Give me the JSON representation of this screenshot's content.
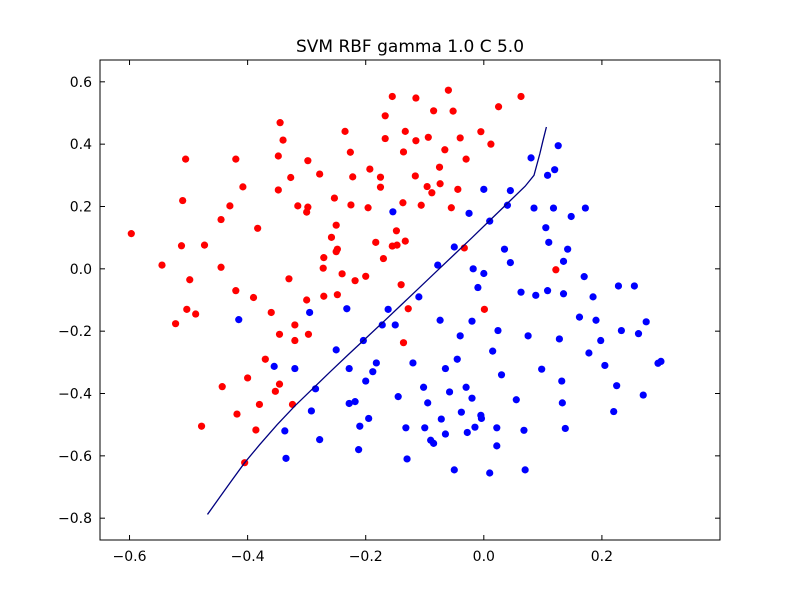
{
  "colors": {
    "class_a": "#ff0000",
    "class_b": "#0000ff",
    "boundary": "#000080",
    "axes": "#000000",
    "background": "#ffffff"
  },
  "chart_data": {
    "type": "scatter",
    "title": "SVM RBF gamma 1.0 C 5.0",
    "xlabel": "",
    "ylabel": "",
    "xlim": [
      -0.65,
      0.4
    ],
    "ylim": [
      -0.87,
      0.67
    ],
    "grid": false,
    "x_ticks": [
      -0.6,
      -0.4,
      -0.2,
      0.0,
      0.2
    ],
    "x_tick_labels": [
      "−0.6",
      "−0.4",
      "−0.2",
      "0.0",
      "0.2"
    ],
    "y_ticks": [
      0.6,
      0.4,
      0.2,
      0.0,
      -0.2,
      -0.4,
      -0.6,
      -0.8
    ],
    "y_tick_labels": [
      "0.6",
      "0.4",
      "0.2",
      "0.0",
      "−0.2",
      "−0.4",
      "−0.6",
      "−0.8"
    ],
    "series": [
      {
        "color": "#ff0000",
        "points": [
          [
            -0.597,
            0.113
          ],
          [
            -0.545,
            0.012
          ],
          [
            -0.522,
            -0.176
          ],
          [
            -0.512,
            0.074
          ],
          [
            -0.51,
            0.219
          ],
          [
            -0.505,
            0.352
          ],
          [
            -0.503,
            -0.13
          ],
          [
            -0.498,
            -0.035
          ],
          [
            -0.488,
            -0.145
          ],
          [
            -0.478,
            -0.505
          ],
          [
            -0.473,
            0.076
          ],
          [
            -0.445,
            0.158
          ],
          [
            -0.443,
            -0.378
          ],
          [
            -0.445,
            0.005
          ],
          [
            -0.43,
            0.202
          ],
          [
            -0.42,
            0.352
          ],
          [
            -0.42,
            -0.07
          ],
          [
            -0.418,
            -0.466
          ],
          [
            -0.408,
            0.263
          ],
          [
            -0.405,
            -0.622
          ],
          [
            -0.4,
            -0.35
          ],
          [
            -0.39,
            -0.092
          ],
          [
            -0.386,
            -0.517
          ],
          [
            -0.383,
            0.13
          ],
          [
            -0.38,
            -0.435
          ],
          [
            -0.37,
            -0.29
          ],
          [
            -0.36,
            -0.14
          ],
          [
            -0.353,
            -0.393
          ],
          [
            -0.348,
            0.362
          ],
          [
            -0.348,
            0.253
          ],
          [
            -0.346,
            -0.21
          ],
          [
            -0.346,
            -0.37
          ],
          [
            -0.345,
            0.469
          ],
          [
            -0.34,
            0.413
          ],
          [
            -0.33,
            -0.032
          ],
          [
            -0.327,
            0.293
          ],
          [
            -0.324,
            -0.435
          ],
          [
            -0.32,
            -0.18
          ],
          [
            -0.32,
            -0.23
          ],
          [
            -0.315,
            0.202
          ],
          [
            -0.3,
            0.182
          ],
          [
            -0.3,
            -0.1
          ],
          [
            -0.298,
            0.198
          ],
          [
            -0.298,
            0.347
          ],
          [
            -0.297,
            -0.21
          ],
          [
            -0.278,
            0.304
          ],
          [
            -0.272,
            0.002
          ],
          [
            -0.271,
            0.036
          ],
          [
            -0.271,
            -0.088
          ],
          [
            -0.258,
            0.101
          ],
          [
            -0.253,
            0.227
          ],
          [
            -0.25,
            0.14
          ],
          [
            -0.25,
            0.055
          ],
          [
            -0.248,
            0.063
          ],
          [
            -0.248,
            -0.083
          ],
          [
            -0.24,
            -0.016
          ],
          [
            -0.235,
            0.441
          ],
          [
            -0.226,
            0.374
          ],
          [
            -0.225,
            0.205
          ],
          [
            -0.222,
            0.295
          ],
          [
            -0.218,
            -0.038
          ],
          [
            -0.2,
            -0.024
          ],
          [
            -0.196,
            0.196
          ],
          [
            -0.193,
            0.32
          ],
          [
            -0.183,
            0.085
          ],
          [
            -0.175,
            0.262
          ],
          [
            -0.175,
            0.294
          ],
          [
            -0.17,
            0.033
          ],
          [
            -0.167,
            0.491
          ],
          [
            -0.167,
            0.418
          ],
          [
            -0.155,
            0.073
          ],
          [
            -0.155,
            0.553
          ],
          [
            -0.148,
            0.122
          ],
          [
            -0.147,
            0.076
          ],
          [
            -0.14,
            -0.051
          ],
          [
            -0.137,
            0.212
          ],
          [
            -0.136,
            0.375
          ],
          [
            -0.136,
            -0.237
          ],
          [
            -0.133,
            0.441
          ],
          [
            -0.133,
            0.089
          ],
          [
            -0.128,
            -0.128
          ],
          [
            -0.115,
            0.548
          ],
          [
            -0.116,
            0.298
          ],
          [
            -0.115,
            0.411
          ],
          [
            -0.106,
            0.204
          ],
          [
            -0.096,
            0.264
          ],
          [
            -0.094,
            0.422
          ],
          [
            -0.088,
            0.244
          ],
          [
            -0.085,
            0.507
          ],
          [
            -0.075,
            0.326
          ],
          [
            -0.074,
            0.273
          ],
          [
            -0.066,
            0.382
          ],
          [
            -0.06,
            0.573
          ],
          [
            -0.055,
            0.196
          ],
          [
            -0.052,
            0.506
          ],
          [
            -0.044,
            0.255
          ],
          [
            -0.04,
            0.42
          ],
          [
            -0.033,
            0.067
          ],
          [
            -0.03,
            0.352
          ],
          [
            -0.005,
            0.44
          ],
          [
            0.001,
            -0.13
          ],
          [
            0.012,
            0.4
          ],
          [
            0.025,
            0.52
          ],
          [
            0.063,
            0.553
          ],
          [
            0.122,
            -0.003
          ]
        ]
      },
      {
        "color": "#0000ff",
        "points": [
          [
            -0.415,
            -0.163
          ],
          [
            -0.355,
            -0.313
          ],
          [
            -0.337,
            -0.52
          ],
          [
            -0.335,
            -0.608
          ],
          [
            -0.32,
            -0.32
          ],
          [
            -0.295,
            -0.14
          ],
          [
            -0.292,
            -0.456
          ],
          [
            -0.285,
            -0.385
          ],
          [
            -0.278,
            -0.548
          ],
          [
            -0.25,
            -0.26
          ],
          [
            -0.232,
            -0.128
          ],
          [
            -0.228,
            -0.432
          ],
          [
            -0.228,
            -0.32
          ],
          [
            -0.218,
            -0.426
          ],
          [
            -0.212,
            -0.58
          ],
          [
            -0.21,
            -0.505
          ],
          [
            -0.204,
            -0.23
          ],
          [
            -0.2,
            -0.36
          ],
          [
            -0.195,
            -0.48
          ],
          [
            -0.188,
            -0.33
          ],
          [
            -0.182,
            -0.302
          ],
          [
            -0.172,
            -0.18
          ],
          [
            -0.162,
            -0.13
          ],
          [
            -0.15,
            -0.18
          ],
          [
            -0.154,
            0.183
          ],
          [
            -0.145,
            -0.41
          ],
          [
            -0.132,
            -0.51
          ],
          [
            -0.13,
            -0.61
          ],
          [
            -0.12,
            -0.302
          ],
          [
            -0.11,
            -0.09
          ],
          [
            -0.102,
            -0.38
          ],
          [
            -0.1,
            -0.51
          ],
          [
            -0.095,
            -0.43
          ],
          [
            -0.09,
            -0.55
          ],
          [
            -0.085,
            -0.56
          ],
          [
            -0.078,
            0.012
          ],
          [
            -0.074,
            -0.165
          ],
          [
            -0.072,
            -0.482
          ],
          [
            -0.065,
            -0.32
          ],
          [
            -0.065,
            -0.53
          ],
          [
            -0.058,
            -0.395
          ],
          [
            -0.05,
            -0.645
          ],
          [
            -0.05,
            0.07
          ],
          [
            -0.045,
            -0.29
          ],
          [
            -0.04,
            -0.215
          ],
          [
            -0.038,
            -0.46
          ],
          [
            -0.03,
            -0.38
          ],
          [
            -0.028,
            -0.525
          ],
          [
            -0.025,
            0.178
          ],
          [
            -0.02,
            -0.168
          ],
          [
            -0.02,
            -0.415
          ],
          [
            -0.018,
            0.0
          ],
          [
            -0.015,
            -0.508
          ],
          [
            -0.01,
            -0.06
          ],
          [
            -0.005,
            -0.47
          ],
          [
            -0.004,
            -0.48
          ],
          [
            0.0,
            0.255
          ],
          [
            0.0,
            -0.015
          ],
          [
            0.01,
            0.153
          ],
          [
            0.01,
            -0.655
          ],
          [
            0.015,
            -0.264
          ],
          [
            0.022,
            -0.51
          ],
          [
            0.022,
            -0.568
          ],
          [
            0.024,
            -0.198
          ],
          [
            0.03,
            -0.34
          ],
          [
            0.035,
            0.063
          ],
          [
            0.04,
            0.204
          ],
          [
            0.045,
            0.251
          ],
          [
            0.045,
            0.02
          ],
          [
            0.055,
            -0.42
          ],
          [
            0.063,
            -0.075
          ],
          [
            0.068,
            -0.518
          ],
          [
            0.07,
            -0.645
          ],
          [
            0.075,
            -0.215
          ],
          [
            0.08,
            0.356
          ],
          [
            0.085,
            0.195
          ],
          [
            0.088,
            -0.085
          ],
          [
            0.098,
            -0.322
          ],
          [
            0.105,
            0.132
          ],
          [
            0.108,
            -0.07
          ],
          [
            0.108,
            0.3
          ],
          [
            0.11,
            0.085
          ],
          [
            0.118,
            0.195
          ],
          [
            0.12,
            0.318
          ],
          [
            0.126,
            0.395
          ],
          [
            0.128,
            -0.225
          ],
          [
            0.132,
            -0.36
          ],
          [
            0.133,
            -0.43
          ],
          [
            0.135,
            -0.08
          ],
          [
            0.135,
            0.024
          ],
          [
            0.138,
            -0.512
          ],
          [
            0.142,
            0.063
          ],
          [
            0.148,
            0.168
          ],
          [
            0.162,
            -0.155
          ],
          [
            0.17,
            -0.025
          ],
          [
            0.172,
            0.195
          ],
          [
            0.178,
            -0.27
          ],
          [
            0.185,
            -0.09
          ],
          [
            0.19,
            -0.165
          ],
          [
            0.198,
            -0.23
          ],
          [
            0.205,
            -0.31
          ],
          [
            0.22,
            -0.458
          ],
          [
            0.225,
            -0.375
          ],
          [
            0.228,
            -0.055
          ],
          [
            0.233,
            -0.198
          ],
          [
            0.255,
            -0.055
          ],
          [
            0.262,
            -0.208
          ],
          [
            0.27,
            -0.405
          ],
          [
            0.275,
            -0.17
          ],
          [
            0.295,
            -0.303
          ],
          [
            0.3,
            -0.297
          ]
        ]
      }
    ],
    "decision_boundary": {
      "color": "#000080",
      "points": [
        [
          -0.468,
          -0.788
        ],
        [
          -0.448,
          -0.735
        ],
        [
          -0.428,
          -0.682
        ],
        [
          -0.405,
          -0.622
        ],
        [
          -0.38,
          -0.565
        ],
        [
          -0.35,
          -0.5
        ],
        [
          -0.32,
          -0.44
        ],
        [
          -0.29,
          -0.385
        ],
        [
          -0.26,
          -0.33
        ],
        [
          -0.23,
          -0.276
        ],
        [
          -0.2,
          -0.223
        ],
        [
          -0.17,
          -0.17
        ],
        [
          -0.14,
          -0.116
        ],
        [
          -0.11,
          -0.062
        ],
        [
          -0.08,
          -0.008
        ],
        [
          -0.05,
          0.046
        ],
        [
          -0.02,
          0.1
        ],
        [
          0.01,
          0.155
        ],
        [
          0.04,
          0.21
        ],
        [
          0.07,
          0.265
        ],
        [
          0.085,
          0.3
        ],
        [
          0.095,
          0.37
        ],
        [
          0.1,
          0.41
        ],
        [
          0.106,
          0.455
        ]
      ]
    }
  }
}
